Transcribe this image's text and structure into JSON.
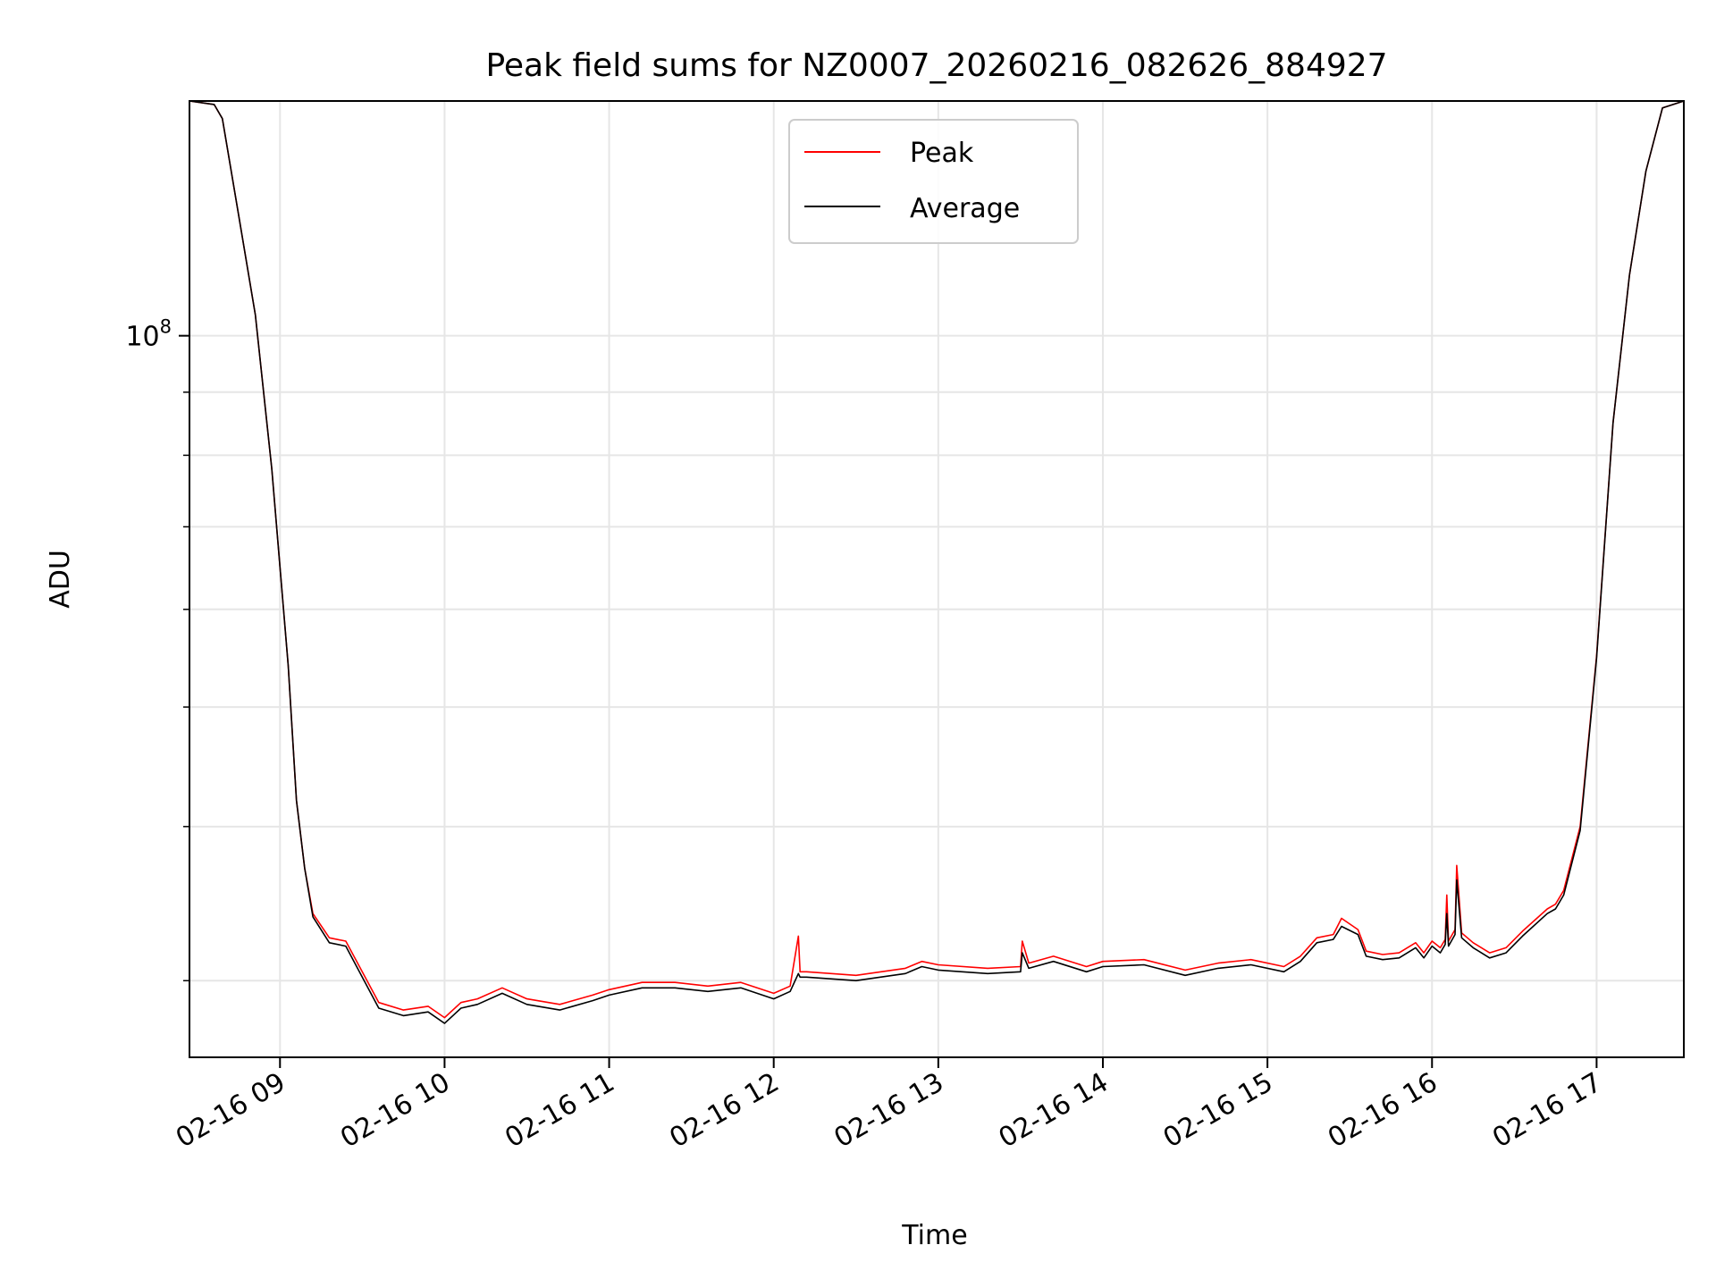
{
  "chart_data": {
    "type": "line",
    "title": "Peak field sums for NZ0007_20260216_082626_884927",
    "xlabel": "Time",
    "ylabel": "ADU",
    "yscale": "log",
    "y_tick_label": {
      "base": "10",
      "exponent": "8",
      "value": 100000000
    },
    "ylim": [
      26000000,
      155000000
    ],
    "xlim_hours": [
      8.45,
      17.53
    ],
    "grid": true,
    "legend": {
      "location": "upper center",
      "entries": [
        "Peak",
        "Average"
      ]
    },
    "x_ticks": [
      {
        "hour": 9,
        "label": "02-16 09"
      },
      {
        "hour": 10,
        "label": "02-16 10"
      },
      {
        "hour": 11,
        "label": "02-16 11"
      },
      {
        "hour": 12,
        "label": "02-16 12"
      },
      {
        "hour": 13,
        "label": "02-16 13"
      },
      {
        "hour": 14,
        "label": "02-16 14"
      },
      {
        "hour": 15,
        "label": "02-16 15"
      },
      {
        "hour": 16,
        "label": "02-16 16"
      },
      {
        "hour": 17,
        "label": "02-16 17"
      }
    ],
    "series": [
      {
        "name": "Peak",
        "color": "#ff0000",
        "x_hours": [
          8.45,
          8.6,
          8.65,
          8.75,
          8.85,
          8.95,
          9.05,
          9.1,
          9.15,
          9.2,
          9.3,
          9.4,
          9.5,
          9.6,
          9.75,
          9.9,
          10.0,
          10.1,
          10.2,
          10.35,
          10.5,
          10.7,
          10.9,
          11.0,
          11.2,
          11.4,
          11.6,
          11.8,
          12.0,
          12.1,
          12.15,
          12.16,
          12.2,
          12.5,
          12.8,
          12.9,
          13.0,
          13.3,
          13.5,
          13.51,
          13.55,
          13.7,
          13.9,
          14.0,
          14.25,
          14.5,
          14.7,
          14.9,
          15.1,
          15.2,
          15.3,
          15.4,
          15.45,
          15.55,
          15.6,
          15.7,
          15.8,
          15.9,
          15.95,
          16.0,
          16.05,
          16.08,
          16.09,
          16.1,
          16.14,
          16.15,
          16.18,
          16.25,
          16.35,
          16.45,
          16.55,
          16.7,
          16.75,
          16.8,
          16.9,
          17.0,
          17.1,
          17.2,
          17.3,
          17.4,
          17.53
        ],
        "values": [
          155000000,
          154000000,
          150000000,
          125000000,
          104000000,
          78000000,
          54000000,
          42000000,
          37000000,
          34000000,
          32500000,
          32300000,
          30500000,
          28800000,
          28400000,
          28600000,
          28000000,
          28800000,
          29000000,
          29600000,
          29000000,
          28700000,
          29200000,
          29500000,
          29900000,
          29900000,
          29700000,
          29900000,
          29300000,
          29700000,
          32600000,
          30500000,
          30500000,
          30300000,
          30700000,
          31100000,
          30900000,
          30700000,
          30800000,
          32300000,
          31000000,
          31400000,
          30800000,
          31100000,
          31200000,
          30600000,
          31000000,
          31200000,
          30800000,
          31400000,
          32500000,
          32700000,
          33700000,
          33000000,
          31700000,
          31500000,
          31600000,
          32200000,
          31600000,
          32300000,
          31900000,
          32400000,
          35200000,
          32300000,
          33000000,
          37200000,
          32800000,
          32200000,
          31600000,
          31900000,
          32900000,
          34300000,
          34600000,
          35500000,
          40000000,
          55000000,
          85000000,
          112000000,
          136000000,
          153000000,
          155000000
        ]
      },
      {
        "name": "Average",
        "color": "#000000",
        "x_hours": [
          8.45,
          8.6,
          8.65,
          8.75,
          8.85,
          8.95,
          9.05,
          9.1,
          9.15,
          9.2,
          9.3,
          9.4,
          9.5,
          9.6,
          9.75,
          9.9,
          10.0,
          10.1,
          10.2,
          10.35,
          10.5,
          10.7,
          10.9,
          11.0,
          11.2,
          11.4,
          11.6,
          11.8,
          12.0,
          12.1,
          12.15,
          12.16,
          12.2,
          12.5,
          12.8,
          12.9,
          13.0,
          13.3,
          13.5,
          13.51,
          13.55,
          13.7,
          13.9,
          14.0,
          14.25,
          14.5,
          14.7,
          14.9,
          15.1,
          15.2,
          15.3,
          15.4,
          15.45,
          15.55,
          15.6,
          15.7,
          15.8,
          15.9,
          15.95,
          16.0,
          16.05,
          16.08,
          16.09,
          16.1,
          16.14,
          16.15,
          16.18,
          16.25,
          16.35,
          16.45,
          16.55,
          16.7,
          16.75,
          16.8,
          16.9,
          17.0,
          17.1,
          17.2,
          17.3,
          17.4,
          17.53
        ],
        "values": [
          155000000,
          154000000,
          150000000,
          125000000,
          104000000,
          78000000,
          54000000,
          42000000,
          37000000,
          33800000,
          32200000,
          32000000,
          30200000,
          28500000,
          28100000,
          28300000,
          27700000,
          28500000,
          28700000,
          29300000,
          28700000,
          28400000,
          28900000,
          29200000,
          29600000,
          29600000,
          29400000,
          29600000,
          29000000,
          29400000,
          30400000,
          30200000,
          30200000,
          30000000,
          30400000,
          30800000,
          30600000,
          30400000,
          30500000,
          31600000,
          30700000,
          31100000,
          30500000,
          30800000,
          30900000,
          30300000,
          30700000,
          30900000,
          30500000,
          31100000,
          32200000,
          32400000,
          33200000,
          32700000,
          31400000,
          31200000,
          31300000,
          31900000,
          31300000,
          32000000,
          31600000,
          32100000,
          34000000,
          32000000,
          32700000,
          36200000,
          32500000,
          31900000,
          31300000,
          31600000,
          32600000,
          34000000,
          34300000,
          35200000,
          39700000,
          54800000,
          85000000,
          112000000,
          136000000,
          153000000,
          155000000
        ]
      }
    ]
  }
}
